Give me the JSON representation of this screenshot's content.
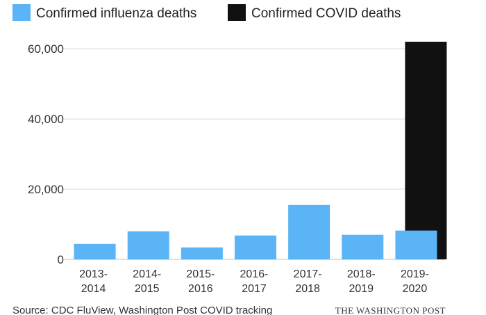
{
  "chart_data": {
    "type": "bar",
    "categories": [
      [
        "2013-",
        "2014"
      ],
      [
        "2014-",
        "2015"
      ],
      [
        "2015-",
        "2016"
      ],
      [
        "2016-",
        "2017"
      ],
      [
        "2017-",
        "2018"
      ],
      [
        "2018-",
        "2019"
      ],
      [
        "2019-",
        "2020"
      ]
    ],
    "series": [
      {
        "name": "Confirmed influenza deaths",
        "color": "#5ab4f5",
        "values": [
          4400,
          8000,
          3400,
          6800,
          15500,
          7000,
          8200
        ]
      },
      {
        "name": "Confirmed COVID deaths",
        "color": "#111111",
        "values": [
          null,
          null,
          null,
          null,
          null,
          null,
          62000
        ]
      }
    ],
    "yticks": [
      0,
      20000,
      40000,
      60000
    ],
    "ytick_labels": [
      "0",
      "20,000",
      "40,000",
      "60,000"
    ],
    "ylim": [
      0,
      62000
    ],
    "grid": true,
    "legend_position": "top-left",
    "source": "Source: CDC FluView, Washington Post COVID tracking",
    "credit": "THE WASHINGTON POST"
  }
}
